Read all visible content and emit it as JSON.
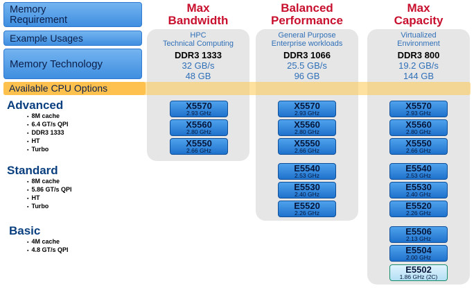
{
  "row_labels": {
    "memory_requirement": [
      "Memory",
      "Requirement"
    ],
    "example_usages": "Example Usages",
    "memory_technology": "Memory Technology",
    "available_cpu_options": "Available CPU Options"
  },
  "columns": [
    {
      "header": [
        "Max",
        "Bandwidth"
      ],
      "usage": [
        "HPC",
        "Technical Computing"
      ],
      "memory": {
        "type": "DDR3 1333",
        "bandwidth": "32 GB/s",
        "capacity": "48 GB"
      }
    },
    {
      "header": [
        "Balanced",
        "Performance"
      ],
      "usage": [
        "General Purpose",
        "Enterprise workloads"
      ],
      "memory": {
        "type": "DDR3 1066",
        "bandwidth": "25.5 GB/s",
        "capacity": "96 GB"
      }
    },
    {
      "header": [
        "Max",
        "Capacity"
      ],
      "usage": [
        "Virtualized",
        "Environment"
      ],
      "memory": {
        "type": "DDR3 800",
        "bandwidth": "19.2 GB/s",
        "capacity": "144 GB"
      }
    }
  ],
  "groups": {
    "advanced": {
      "title": "Advanced",
      "features": [
        "8M cache",
        "6.4 GT/s QPI",
        "DDR3 1333",
        "HT",
        "Turbo"
      ],
      "cpus": [
        {
          "name": "X5570",
          "speed": "2.93 GHz"
        },
        {
          "name": "X5560",
          "speed": "2.80 GHz"
        },
        {
          "name": "X5550",
          "speed": "2.66 GHz"
        }
      ]
    },
    "standard": {
      "title": "Standard",
      "features": [
        "8M cache",
        "5.86 GT/s QPI",
        "HT",
        "Turbo"
      ],
      "cpus": [
        {
          "name": "E5540",
          "speed": "2.53 GHz"
        },
        {
          "name": "E5530",
          "speed": "2.40 GHz"
        },
        {
          "name": "E5520",
          "speed": "2.26 GHz"
        }
      ]
    },
    "basic": {
      "title": "Basic",
      "features": [
        "4M cache",
        "4.8 GT/s QPI"
      ],
      "cpus": [
        {
          "name": "E5506",
          "speed": "2.13 GHz"
        },
        {
          "name": "E5504",
          "speed": "2.00 GHz"
        },
        {
          "name": "E5502",
          "speed": "1.86 GHz (2C)"
        }
      ]
    }
  },
  "colors": {
    "header_red": "#c8102e",
    "label_blue": "#3f8ee0",
    "value_blue": "#2f6fb8",
    "available_orange": "#ffc14d"
  }
}
